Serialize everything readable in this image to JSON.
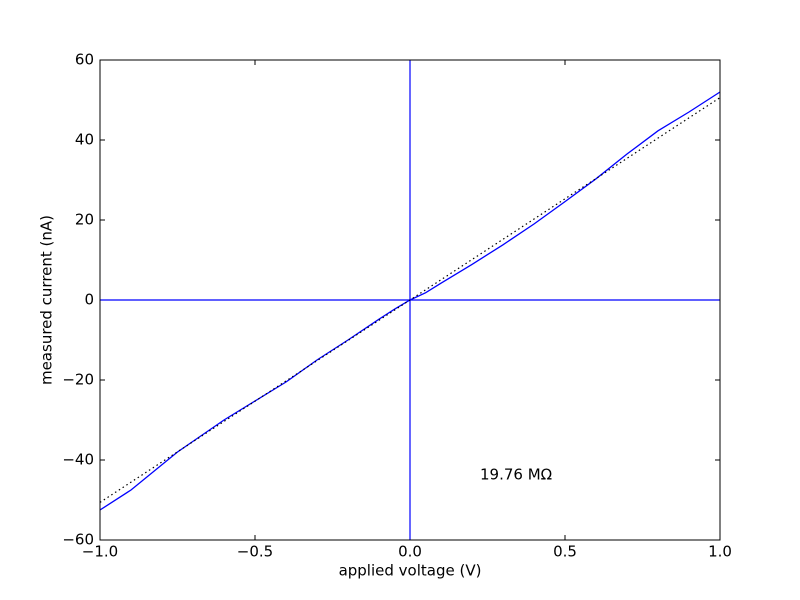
{
  "chart_data": {
    "type": "line",
    "xlabel": "applied voltage (V)",
    "ylabel": "measured current (nA)",
    "annotation": "19.76 MΩ",
    "xlim": [
      -1,
      1
    ],
    "ylim": [
      -60,
      60
    ],
    "xticks": [
      {
        "value": -1,
        "label": "−1.0"
      },
      {
        "value": -0.5,
        "label": "−0.5"
      },
      {
        "value": 0,
        "label": "0.0"
      },
      {
        "value": 0.5,
        "label": "0.5"
      },
      {
        "value": 1,
        "label": "1.0"
      }
    ],
    "yticks": [
      {
        "value": -60,
        "label": "−60"
      },
      {
        "value": -40,
        "label": "−40"
      },
      {
        "value": -20,
        "label": "−20"
      },
      0,
      20,
      40,
      60
    ],
    "hlines": [
      0
    ],
    "vlines": [
      0
    ],
    "reference_color": "#0000ff",
    "series": [
      {
        "color": "#0000ff",
        "style": "solid",
        "x": [
          -1,
          -0.9,
          -0.75,
          -0.6,
          -0.4,
          -0.3,
          -0.2,
          -0.1,
          -0.05,
          0,
          0.05,
          0.1,
          0.2,
          0.3,
          0.4,
          0.5,
          0.6,
          0.7,
          0.8,
          0.9,
          1
        ],
        "values": [
          -52.5,
          -47.5,
          -38,
          -30,
          -20.5,
          -15,
          -10,
          -4.8,
          -2.3,
          0,
          1.8,
          4.2,
          8.9,
          13.8,
          19,
          24.6,
          30.3,
          36.5,
          42.3,
          47,
          52
        ]
      },
      {
        "color": "#000000",
        "style": "dotted",
        "x": [
          -1,
          1
        ],
        "values": [
          -50.6,
          50.6
        ]
      }
    ]
  }
}
